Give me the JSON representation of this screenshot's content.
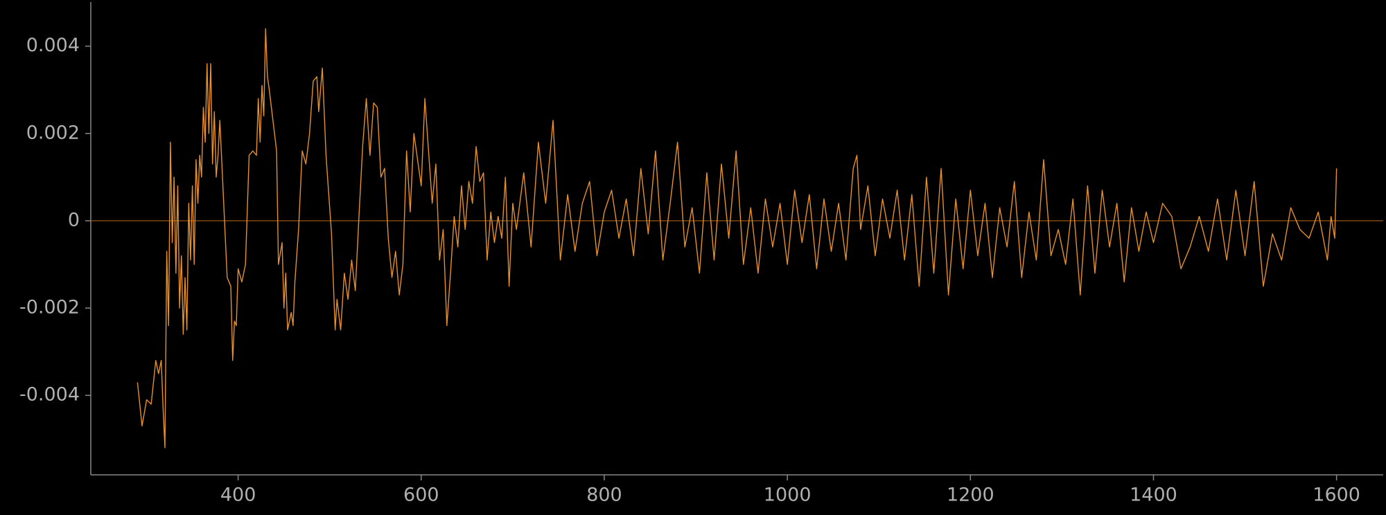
{
  "chart_data": {
    "type": "line",
    "x": [
      290,
      295,
      300,
      305,
      310,
      313,
      316,
      318,
      320,
      322,
      324,
      326,
      328,
      330,
      332,
      334,
      336,
      338,
      340,
      342,
      344,
      346,
      348,
      350,
      352,
      354,
      356,
      358,
      360,
      362,
      364,
      366,
      368,
      370,
      372,
      374,
      376,
      378,
      380,
      384,
      388,
      392,
      394,
      396,
      398,
      400,
      404,
      408,
      412,
      416,
      420,
      422,
      424,
      426,
      428,
      430,
      432,
      434,
      438,
      442,
      444,
      448,
      450,
      452,
      454,
      458,
      460,
      462,
      466,
      470,
      474,
      478,
      482,
      486,
      488,
      492,
      496,
      498,
      502,
      506,
      508,
      512,
      516,
      520,
      524,
      528,
      532,
      536,
      540,
      544,
      548,
      552,
      556,
      560,
      564,
      568,
      572,
      576,
      580,
      584,
      588,
      592,
      596,
      600,
      604,
      608,
      612,
      616,
      620,
      624,
      628,
      632,
      636,
      640,
      644,
      648,
      652,
      656,
      660,
      664,
      668,
      672,
      676,
      680,
      684,
      688,
      692,
      696,
      700,
      704,
      712,
      720,
      728,
      736,
      744,
      752,
      760,
      768,
      776,
      784,
      792,
      800,
      808,
      816,
      824,
      832,
      840,
      848,
      856,
      864,
      872,
      880,
      888,
      896,
      904,
      912,
      920,
      928,
      936,
      944,
      952,
      960,
      968,
      976,
      984,
      992,
      1000,
      1008,
      1016,
      1024,
      1032,
      1040,
      1048,
      1056,
      1064,
      1072,
      1076,
      1080,
      1088,
      1096,
      1104,
      1112,
      1120,
      1128,
      1136,
      1144,
      1152,
      1160,
      1168,
      1176,
      1184,
      1192,
      1200,
      1208,
      1216,
      1224,
      1232,
      1240,
      1248,
      1256,
      1264,
      1272,
      1280,
      1288,
      1296,
      1304,
      1312,
      1320,
      1328,
      1336,
      1344,
      1352,
      1360,
      1368,
      1376,
      1384,
      1392,
      1400,
      1410,
      1420,
      1430,
      1440,
      1450,
      1460,
      1470,
      1480,
      1490,
      1500,
      1510,
      1520,
      1530,
      1540,
      1550,
      1560,
      1570,
      1580,
      1590,
      1594,
      1598,
      1600
    ],
    "values": [
      -0.0037,
      -0.0047,
      -0.0041,
      -0.0042,
      -0.0032,
      -0.0035,
      -0.0032,
      -0.0043,
      -0.0052,
      -0.0007,
      -0.0024,
      0.0018,
      -0.0005,
      0.001,
      -0.0012,
      0.0008,
      -0.002,
      -0.0008,
      -0.0026,
      -0.0013,
      -0.0025,
      0.0004,
      -0.0009,
      0.0008,
      -0.001,
      0.0014,
      0.0004,
      0.0015,
      0.001,
      0.0026,
      0.0018,
      0.0036,
      0.002,
      0.0036,
      0.0013,
      0.0025,
      0.001,
      0.0015,
      0.0023,
      0.0005,
      -0.0013,
      -0.0015,
      -0.0032,
      -0.0023,
      -0.0024,
      -0.0011,
      -0.0014,
      -0.001,
      0.0015,
      0.0016,
      0.0015,
      0.0028,
      0.0018,
      0.0031,
      0.0024,
      0.0044,
      0.0033,
      0.003,
      0.0023,
      0.0016,
      -0.001,
      -0.0005,
      -0.002,
      -0.0012,
      -0.0025,
      -0.0021,
      -0.0024,
      -0.0014,
      -0.0002,
      0.0016,
      0.0013,
      0.002,
      0.0032,
      0.0033,
      0.0025,
      0.0035,
      0.0015,
      0.0009,
      -0.0003,
      -0.0025,
      -0.0018,
      -0.0025,
      -0.0012,
      -0.0018,
      -0.0009,
      -0.0016,
      0.0001,
      0.0017,
      0.0028,
      0.0015,
      0.0027,
      0.0026,
      0.001,
      0.0012,
      -0.0004,
      -0.0013,
      -0.0007,
      -0.0017,
      -0.001,
      0.0016,
      0.0002,
      0.002,
      0.0014,
      0.0008,
      0.0028,
      0.0016,
      0.0004,
      0.0013,
      -0.0009,
      -0.0002,
      -0.0024,
      -0.0012,
      0.0001,
      -0.0006,
      0.0008,
      -0.0002,
      0.0009,
      0.0004,
      0.0017,
      0.0009,
      0.0011,
      -0.0009,
      0.0002,
      -0.0005,
      0.0001,
      -0.0004,
      0.001,
      -0.0015,
      0.0004,
      -0.0002,
      0.0011,
      -0.0006,
      0.0018,
      0.0004,
      0.0023,
      -0.0009,
      0.0006,
      -0.0007,
      0.0004,
      0.0009,
      -0.0008,
      0.0002,
      0.0007,
      -0.0004,
      0.0005,
      -0.0008,
      0.0012,
      -0.0003,
      0.0016,
      -0.0009,
      0.0004,
      0.0018,
      -0.0006,
      0.0003,
      -0.0012,
      0.0011,
      -0.0009,
      0.0013,
      -0.0004,
      0.0016,
      -0.001,
      0.0003,
      -0.0012,
      0.0005,
      -0.0006,
      0.0004,
      -0.001,
      0.0007,
      -0.0005,
      0.0006,
      -0.0011,
      0.0005,
      -0.0007,
      0.0004,
      -0.0009,
      0.0012,
      0.0015,
      -0.0002,
      0.0008,
      -0.0008,
      0.0005,
      -0.0004,
      0.0007,
      -0.0009,
      0.0006,
      -0.0015,
      0.001,
      -0.0012,
      0.0012,
      -0.0017,
      0.0005,
      -0.0011,
      0.0007,
      -0.0008,
      0.0004,
      -0.0013,
      0.0003,
      -0.0006,
      0.0009,
      -0.0013,
      0.0002,
      -0.0009,
      0.0014,
      -0.0008,
      -0.0002,
      -0.001,
      0.0005,
      -0.0017,
      0.0008,
      -0.0012,
      0.0007,
      -0.0006,
      0.0004,
      -0.0014,
      0.0003,
      -0.0007,
      0.0002,
      -0.0005,
      0.0004,
      0.0001,
      -0.0011,
      -0.0006,
      0.0001,
      -0.0007,
      0.0005,
      -0.0009,
      0.0007,
      -0.0008,
      0.0009,
      -0.0015,
      -0.0003,
      -0.0009,
      0.0003,
      -0.0002,
      -0.0004,
      0.0002,
      -0.0009,
      0.0001,
      -0.0004,
      0.0012
    ],
    "color": "#e8902a",
    "xlim": [
      239,
      1651
    ],
    "ylim": [
      -0.00582,
      0.00501
    ],
    "xticks": [
      400,
      600,
      800,
      1000,
      1200,
      1400,
      1600
    ],
    "yticks": [
      -0.004,
      -0.002,
      0,
      0.002,
      0.004
    ]
  }
}
